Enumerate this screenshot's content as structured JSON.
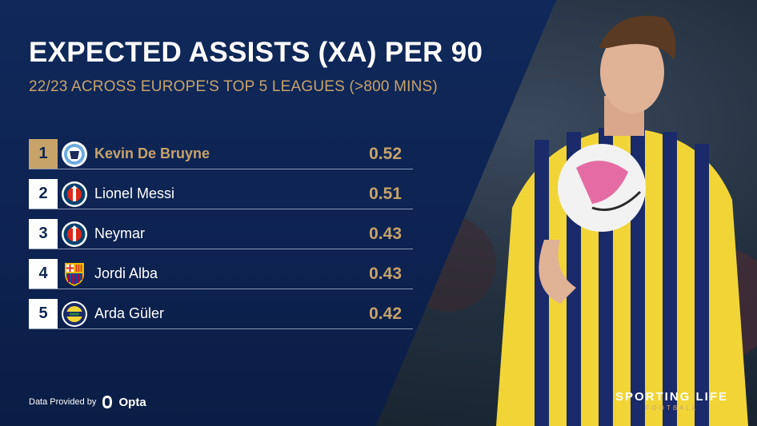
{
  "chart_data": {
    "type": "table",
    "title": "EXPECTED ASSISTS (XA) PER 90",
    "subtitle": "22/23 ACROSS EUROPE'S TOP 5 LEAGUES (>800 MINS)",
    "rows": [
      {
        "rank": "1",
        "player": "Kevin De Bruyne",
        "club_icon": "manchester-city-crest-icon",
        "value": "0.52"
      },
      {
        "rank": "2",
        "player": "Lionel Messi",
        "club_icon": "psg-crest-icon",
        "value": "0.51"
      },
      {
        "rank": "3",
        "player": "Neymar",
        "club_icon": "psg-crest-icon",
        "value": "0.43"
      },
      {
        "rank": "4",
        "player": "Jordi Alba",
        "club_icon": "barcelona-crest-icon",
        "value": "0.43"
      },
      {
        "rank": "5",
        "player": "Arda Güler",
        "club_icon": "fenerbahce-crest-icon",
        "value": "0.42"
      }
    ]
  },
  "footer": {
    "data_provided_by": "Data Provided by",
    "provider": "Opta",
    "brand_name": "SPORTING LIFE",
    "brand_sub": "FOOTBALL"
  },
  "colors": {
    "background": "#0f2550",
    "accent_gold": "#c7a36a",
    "text": "#ffffff"
  }
}
